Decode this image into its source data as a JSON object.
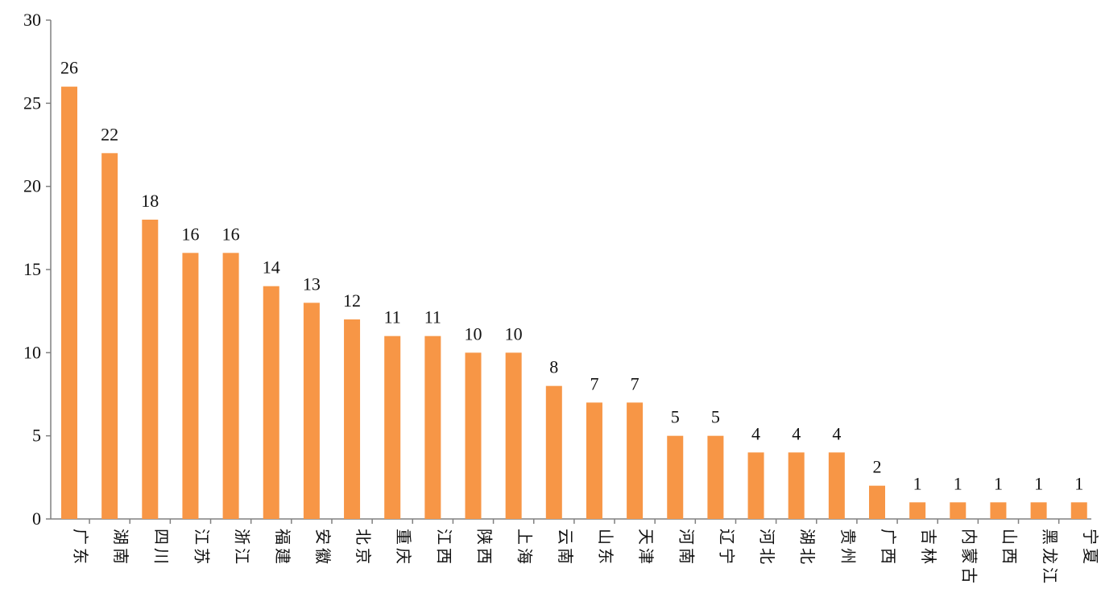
{
  "chart_data": {
    "type": "bar",
    "title": "",
    "xlabel": "",
    "ylabel": "",
    "ylim": [
      0,
      30
    ],
    "y_ticks": [
      0,
      5,
      10,
      15,
      20,
      25,
      30
    ],
    "y_tick_labels": [
      "0",
      "5",
      "10",
      "15",
      "20",
      "25",
      "30"
    ],
    "grid": false,
    "legend": "none",
    "bar_color": "#F79646",
    "axis_color": "#808080",
    "categories": [
      "广东",
      "湖南",
      "四川",
      "江苏",
      "浙江",
      "福建",
      "安徽",
      "北京",
      "重庆",
      "江西",
      "陕西",
      "上海",
      "云南",
      "山东",
      "天津",
      "河南",
      "辽宁",
      "河北",
      "湖北",
      "贵州",
      "广西",
      "吉林",
      "内蒙古",
      "山西",
      "黑龙江",
      "宁夏"
    ],
    "values": [
      26,
      22,
      18,
      16,
      16,
      14,
      13,
      12,
      11,
      11,
      10,
      10,
      8,
      7,
      7,
      5,
      5,
      4,
      4,
      4,
      2,
      1,
      1,
      1,
      1,
      1
    ],
    "value_labels": [
      "26",
      "22",
      "18",
      "16",
      "16",
      "14",
      "13",
      "12",
      "11",
      "11",
      "10",
      "10",
      "8",
      "7",
      "7",
      "5",
      "5",
      "4",
      "4",
      "4",
      "2",
      "1",
      "1",
      "1",
      "1",
      "1"
    ]
  }
}
